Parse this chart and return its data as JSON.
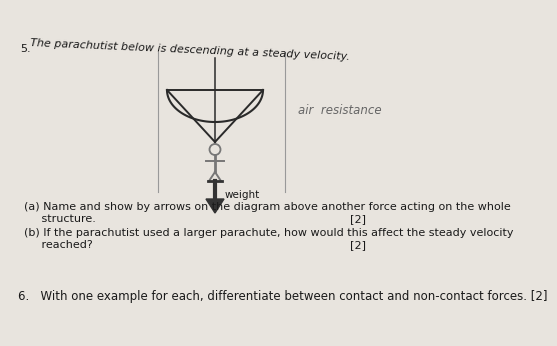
{
  "bg_color": "#e8e4de",
  "text_color": "#1a1a1a",
  "question_number": "5.",
  "question_intro": "The parachutist below is descending at a steady velocity.",
  "handwritten_text": "air  resistance",
  "label_weight": "weight",
  "part_a_line1": "(a) Name and show by arrows on the diagram above another force acting on the whole",
  "part_a_line2": "     structure.",
  "part_a_marks": "[2]",
  "part_b_line1": "(b) If the parachutist used a larger parachute, how would this affect the steady velocity",
  "part_b_line2": "     reached?",
  "part_b_marks": "[2]",
  "question6": "6.   With one example for each, differentiate between contact and non-contact forces. [2]",
  "parachute_color": "#2a2a2a",
  "arrow_color": "#333333",
  "figure_color": "#777777",
  "line_color": "#999999",
  "handwritten_color": "#666666"
}
